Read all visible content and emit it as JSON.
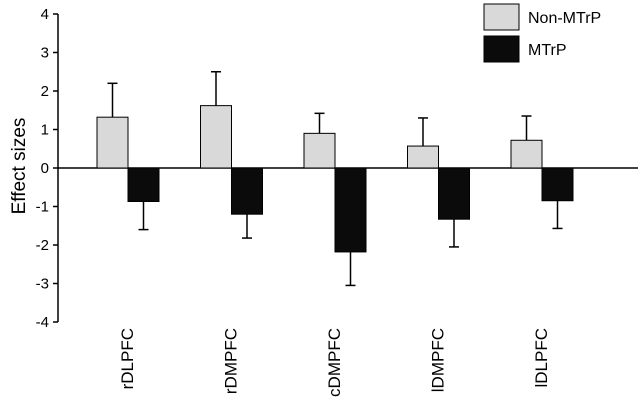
{
  "chart_data": {
    "type": "bar",
    "title": "",
    "xlabel": "",
    "ylabel": "Effect sizes",
    "ylim": [
      -4,
      4
    ],
    "yticks": [
      "4",
      "3",
      "2",
      "1",
      "0",
      "-1",
      "-2",
      "-3",
      "-4"
    ],
    "grid": false,
    "legend_position": "top-right",
    "categories": [
      "rDLPFC",
      "rDMPFC",
      "cDMPFC",
      "lDMPFC",
      "lDLPFC"
    ],
    "series": [
      {
        "name": "Non-MTrP",
        "color": "#d9d9d9",
        "values": [
          1.32,
          1.62,
          0.9,
          0.57,
          0.72
        ],
        "error_high": [
          2.2,
          2.5,
          1.42,
          1.3,
          1.35
        ]
      },
      {
        "name": "MTrP",
        "color": "#0b0b0b",
        "values": [
          -0.87,
          -1.2,
          -2.18,
          -1.33,
          -0.85
        ],
        "error_low": [
          -1.6,
          -1.82,
          -3.05,
          -2.05,
          -1.57
        ]
      }
    ]
  }
}
